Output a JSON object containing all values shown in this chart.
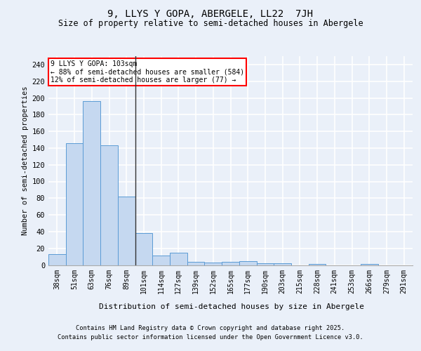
{
  "title1": "9, LLYS Y GOPA, ABERGELE, LL22  7JH",
  "title2": "Size of property relative to semi-detached houses in Abergele",
  "xlabel": "Distribution of semi-detached houses by size in Abergele",
  "ylabel": "Number of semi-detached properties",
  "categories": [
    "38sqm",
    "51sqm",
    "63sqm",
    "76sqm",
    "89sqm",
    "101sqm",
    "114sqm",
    "127sqm",
    "139sqm",
    "152sqm",
    "165sqm",
    "177sqm",
    "190sqm",
    "203sqm",
    "215sqm",
    "228sqm",
    "241sqm",
    "253sqm",
    "266sqm",
    "279sqm",
    "291sqm"
  ],
  "values": [
    13,
    146,
    196,
    143,
    82,
    38,
    11,
    15,
    4,
    3,
    4,
    5,
    2,
    2,
    0,
    1,
    0,
    0,
    1,
    0,
    0
  ],
  "bar_color": "#c5d8f0",
  "bar_edge_color": "#5b9bd5",
  "marker_index": 5,
  "annotation_line1": "9 LLYS Y GOPA: 103sqm",
  "annotation_line2": "← 88% of semi-detached houses are smaller (584)",
  "annotation_line3": "12% of semi-detached houses are larger (77) →",
  "ylim": [
    0,
    250
  ],
  "yticks": [
    0,
    20,
    40,
    60,
    80,
    100,
    120,
    140,
    160,
    180,
    200,
    220,
    240
  ],
  "footer1": "Contains HM Land Registry data © Crown copyright and database right 2025.",
  "footer2": "Contains public sector information licensed under the Open Government Licence v3.0.",
  "bg_color": "#eaf0f9",
  "grid_color": "#ffffff"
}
